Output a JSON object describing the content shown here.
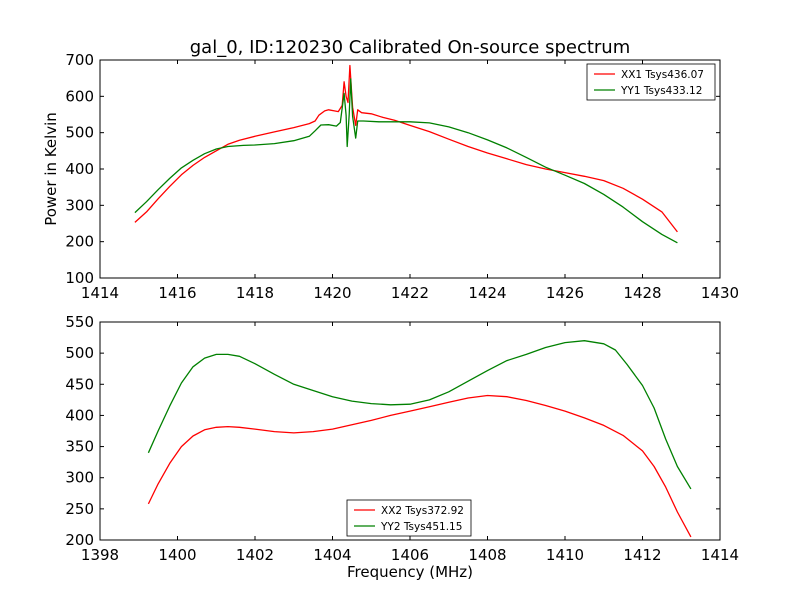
{
  "chart_data": [
    {
      "type": "line",
      "title": "gal_0, ID:120230 Calibrated On-source spectrum",
      "xlabel": "",
      "ylabel": "Power in Kelvin",
      "xlim": [
        1414,
        1430
      ],
      "ylim": [
        100,
        700
      ],
      "xticks": [
        "1414",
        "1416",
        "1418",
        "1420",
        "1422",
        "1424",
        "1426",
        "1428",
        "1430"
      ],
      "yticks": [
        "100",
        "200",
        "300",
        "400",
        "500",
        "600",
        "700"
      ],
      "grid": false,
      "legend_position": "top-right",
      "series": [
        {
          "name": "XX1 Tsys436.07",
          "color": "#ff0000",
          "points": [
            [
              1414.9,
              253
            ],
            [
              1415.2,
              282
            ],
            [
              1415.5,
              318
            ],
            [
              1415.8,
              352
            ],
            [
              1416.1,
              384
            ],
            [
              1416.4,
              410
            ],
            [
              1416.7,
              432
            ],
            [
              1417.0,
              450
            ],
            [
              1417.3,
              468
            ],
            [
              1417.6,
              479
            ],
            [
              1418.0,
              490
            ],
            [
              1418.5,
              502
            ],
            [
              1419.0,
              514
            ],
            [
              1419.4,
              525
            ],
            [
              1419.55,
              532
            ],
            [
              1419.65,
              548
            ],
            [
              1419.8,
              560
            ],
            [
              1419.9,
              563
            ],
            [
              1420.05,
              560
            ],
            [
              1420.15,
              558
            ],
            [
              1420.25,
              575
            ],
            [
              1420.3,
              640
            ],
            [
              1420.35,
              600
            ],
            [
              1420.4,
              583
            ],
            [
              1420.45,
              685
            ],
            [
              1420.52,
              570
            ],
            [
              1420.6,
              520
            ],
            [
              1420.65,
              563
            ],
            [
              1420.75,
              555
            ],
            [
              1421.0,
              552
            ],
            [
              1421.3,
              542
            ],
            [
              1421.6,
              534
            ],
            [
              1422.0,
              520
            ],
            [
              1422.5,
              503
            ],
            [
              1423.0,
              482
            ],
            [
              1423.5,
              462
            ],
            [
              1424.0,
              444
            ],
            [
              1424.5,
              428
            ],
            [
              1425.0,
              412
            ],
            [
              1425.5,
              400
            ],
            [
              1426.0,
              390
            ],
            [
              1426.5,
              380
            ],
            [
              1427.0,
              368
            ],
            [
              1427.5,
              347
            ],
            [
              1428.0,
              317
            ],
            [
              1428.5,
              282
            ],
            [
              1428.9,
              227
            ]
          ]
        },
        {
          "name": "YY1 Tsys433.12",
          "color": "#008000",
          "points": [
            [
              1414.9,
              280
            ],
            [
              1415.2,
              310
            ],
            [
              1415.5,
              343
            ],
            [
              1415.8,
              374
            ],
            [
              1416.1,
              403
            ],
            [
              1416.4,
              424
            ],
            [
              1416.7,
              442
            ],
            [
              1417.0,
              455
            ],
            [
              1417.3,
              462
            ],
            [
              1417.7,
              465
            ],
            [
              1418.0,
              466
            ],
            [
              1418.5,
              470
            ],
            [
              1419.0,
              478
            ],
            [
              1419.4,
              490
            ],
            [
              1419.55,
              505
            ],
            [
              1419.7,
              521
            ],
            [
              1419.9,
              522
            ],
            [
              1420.1,
              518
            ],
            [
              1420.2,
              528
            ],
            [
              1420.3,
              608
            ],
            [
              1420.35,
              548
            ],
            [
              1420.38,
              462
            ],
            [
              1420.43,
              550
            ],
            [
              1420.47,
              648
            ],
            [
              1420.52,
              545
            ],
            [
              1420.6,
              485
            ],
            [
              1420.65,
              532
            ],
            [
              1420.8,
              532
            ],
            [
              1421.2,
              530
            ],
            [
              1421.6,
              530
            ],
            [
              1422.0,
              530
            ],
            [
              1422.5,
              527
            ],
            [
              1423.0,
              516
            ],
            [
              1423.5,
              500
            ],
            [
              1424.0,
              480
            ],
            [
              1424.5,
              458
            ],
            [
              1425.0,
              432
            ],
            [
              1425.5,
              405
            ],
            [
              1426.0,
              383
            ],
            [
              1426.5,
              360
            ],
            [
              1427.0,
              330
            ],
            [
              1427.5,
              295
            ],
            [
              1428.0,
              255
            ],
            [
              1428.5,
              220
            ],
            [
              1428.9,
              197
            ]
          ]
        }
      ]
    },
    {
      "type": "line",
      "title": "",
      "xlabel": "Frequency (MHz)",
      "ylabel": "",
      "xlim": [
        1398,
        1414
      ],
      "ylim": [
        200,
        550
      ],
      "xticks": [
        "1398",
        "1400",
        "1402",
        "1404",
        "1406",
        "1408",
        "1410",
        "1412",
        "1414"
      ],
      "yticks": [
        "200",
        "250",
        "300",
        "350",
        "400",
        "450",
        "500",
        "550"
      ],
      "grid": false,
      "legend_position": "bottom-center",
      "series": [
        {
          "name": "XX2 Tsys372.92",
          "color": "#ff0000",
          "points": [
            [
              1399.25,
              258
            ],
            [
              1399.5,
              290
            ],
            [
              1399.8,
              323
            ],
            [
              1400.1,
              350
            ],
            [
              1400.4,
              367
            ],
            [
              1400.7,
              377
            ],
            [
              1401.0,
              381
            ],
            [
              1401.3,
              382
            ],
            [
              1401.6,
              381
            ],
            [
              1402.0,
              378
            ],
            [
              1402.5,
              374
            ],
            [
              1403.0,
              372
            ],
            [
              1403.5,
              374
            ],
            [
              1404.0,
              378
            ],
            [
              1404.5,
              385
            ],
            [
              1405.0,
              392
            ],
            [
              1405.5,
              400
            ],
            [
              1406.0,
              407
            ],
            [
              1406.5,
              414
            ],
            [
              1407.0,
              421
            ],
            [
              1407.5,
              428
            ],
            [
              1408.0,
              432
            ],
            [
              1408.5,
              430
            ],
            [
              1409.0,
              424
            ],
            [
              1409.5,
              416
            ],
            [
              1410.0,
              407
            ],
            [
              1410.5,
              396
            ],
            [
              1411.0,
              384
            ],
            [
              1411.5,
              368
            ],
            [
              1412.0,
              343
            ],
            [
              1412.3,
              318
            ],
            [
              1412.6,
              285
            ],
            [
              1412.9,
              245
            ],
            [
              1413.25,
              205
            ]
          ]
        },
        {
          "name": "YY2 Tsys451.15",
          "color": "#008000",
          "points": [
            [
              1399.25,
              340
            ],
            [
              1399.5,
              375
            ],
            [
              1399.8,
              415
            ],
            [
              1400.1,
              452
            ],
            [
              1400.4,
              478
            ],
            [
              1400.7,
              492
            ],
            [
              1401.0,
              498
            ],
            [
              1401.3,
              498
            ],
            [
              1401.6,
              495
            ],
            [
              1402.0,
              483
            ],
            [
              1402.5,
              466
            ],
            [
              1403.0,
              450
            ],
            [
              1403.5,
              440
            ],
            [
              1404.0,
              430
            ],
            [
              1404.5,
              423
            ],
            [
              1405.0,
              419
            ],
            [
              1405.5,
              417
            ],
            [
              1406.0,
              418
            ],
            [
              1406.5,
              425
            ],
            [
              1407.0,
              438
            ],
            [
              1407.5,
              455
            ],
            [
              1408.0,
              472
            ],
            [
              1408.5,
              488
            ],
            [
              1409.0,
              498
            ],
            [
              1409.5,
              509
            ],
            [
              1410.0,
              517
            ],
            [
              1410.5,
              520
            ],
            [
              1411.0,
              515
            ],
            [
              1411.3,
              505
            ],
            [
              1411.6,
              482
            ],
            [
              1412.0,
              448
            ],
            [
              1412.3,
              412
            ],
            [
              1412.6,
              362
            ],
            [
              1412.9,
              318
            ],
            [
              1413.25,
              282
            ]
          ]
        }
      ]
    }
  ]
}
